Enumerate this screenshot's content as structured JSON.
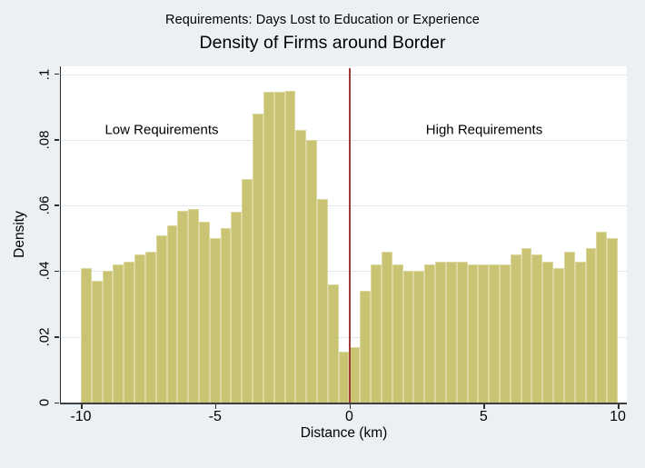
{
  "titles": {
    "supertitle": "Requirements: Days Lost to Education or Experience",
    "title": "Density of Firms around Border"
  },
  "axes": {
    "y": {
      "label": "Density",
      "tick_labels": [
        "0",
        ".02",
        ".04",
        ".06",
        ".08",
        ".1"
      ]
    },
    "x": {
      "label": "Distance (km)",
      "tick_labels": [
        "-10",
        "-5",
        "0",
        "5",
        "10"
      ]
    }
  },
  "annotations": {
    "left": "Low Requirements",
    "right": "High Requirements"
  },
  "colors": {
    "page_background": "#eaf0f4",
    "plot_background": "#ffffff",
    "bar_fill": "#c9c473",
    "bar_outline": "#dcd89f",
    "gridline": "#dde9f1",
    "reference_line": "#9e3b39",
    "text": "#000000"
  },
  "chart_data": {
    "type": "bar",
    "subtype": "histogram",
    "title": "Density of Firms around Border",
    "supertitle": "Requirements: Days Lost to Education or Experience",
    "xlabel": "Distance (km)",
    "ylabel": "Density",
    "xlim": [
      -10,
      10
    ],
    "ylim": [
      0,
      0.1
    ],
    "x_ticks": [
      -10,
      -5,
      0,
      5,
      10
    ],
    "y_ticks": [
      0,
      0.02,
      0.04,
      0.06,
      0.08,
      0.1
    ],
    "grid": true,
    "bin_width": 0.4,
    "bin_start": -10,
    "reference_line_x": 0,
    "annotations": [
      {
        "text": "Low Requirements",
        "x": -7,
        "y": 0.083
      },
      {
        "text": "High Requirements",
        "x": 5.1,
        "y": 0.083
      }
    ],
    "values": [
      0.041,
      0.037,
      0.04,
      0.042,
      0.043,
      0.045,
      0.046,
      0.051,
      0.054,
      0.0585,
      0.059,
      0.055,
      0.05,
      0.053,
      0.058,
      0.068,
      0.088,
      0.0945,
      0.0945,
      0.095,
      0.083,
      0.08,
      0.062,
      0.036,
      0.0155,
      0.017,
      0.034,
      0.042,
      0.046,
      0.042,
      0.04,
      0.04,
      0.042,
      0.043,
      0.043,
      0.043,
      0.042,
      0.042,
      0.042,
      0.042,
      0.045,
      0.047,
      0.045,
      0.043,
      0.041,
      0.046,
      0.043,
      0.047,
      0.052,
      0.05
    ]
  },
  "layout_note": ""
}
